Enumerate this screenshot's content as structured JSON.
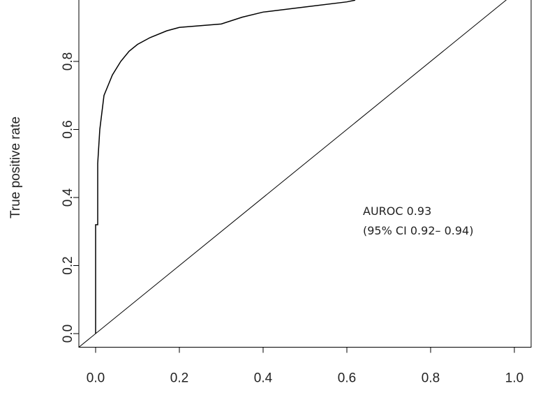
{
  "chart_data": {
    "type": "line",
    "y_label": "True positive rate",
    "annotations": [
      "AUROC 0.93",
      "(95% CI 0.92– 0.94)"
    ],
    "xlim": [
      -0.04,
      1.04
    ],
    "ylim": [
      -0.04,
      1.04
    ],
    "xticks": [
      {
        "value": 0,
        "label": "0.0"
      },
      0.2,
      0.4,
      0.6,
      0.8,
      {
        "value": 1,
        "label": "1.0"
      }
    ],
    "yticks": [
      {
        "value": 0,
        "label": "0.0"
      },
      0.2,
      0.4,
      0.6,
      0.8
    ],
    "series": [
      {
        "color": "#000000",
        "x": [
          0,
          0,
          0.005,
          0.005,
          0.01,
          0.015,
          0.02,
          0.03,
          0.04,
          0.06,
          0.08,
          0.1,
          0.13,
          0.17,
          0.2,
          0.3,
          0.35,
          0.4,
          0.5,
          0.6,
          0.62
        ],
        "values": [
          0,
          0.32,
          0.32,
          0.5,
          0.6,
          0.65,
          0.7,
          0.73,
          0.76,
          0.8,
          0.83,
          0.85,
          0.87,
          0.89,
          0.9,
          0.91,
          0.93,
          0.945,
          0.96,
          0.975,
          0.98
        ]
      }
    ]
  }
}
